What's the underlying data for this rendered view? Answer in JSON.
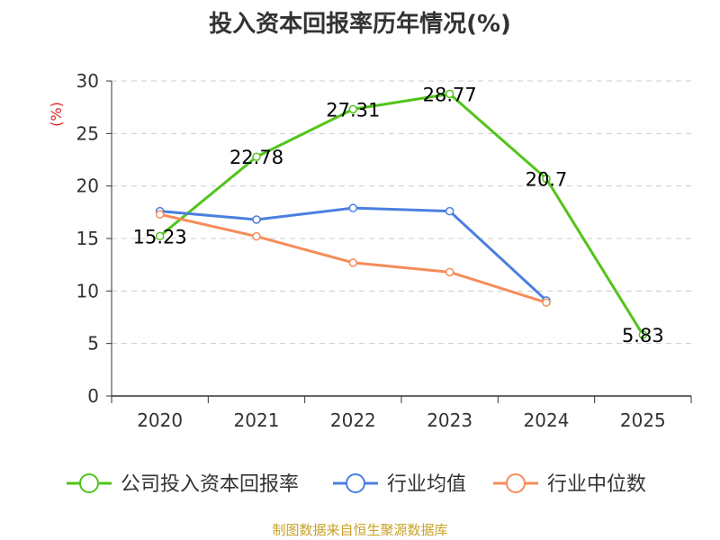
{
  "chart_data": {
    "type": "line",
    "title": "投入资本回报率历年情况(%)",
    "ylabel": "(%)",
    "xlabel": "",
    "categories": [
      "2020",
      "2021",
      "2022",
      "2023",
      "2024",
      "2025"
    ],
    "ylim": [
      0,
      30
    ],
    "yticks": [
      0,
      5,
      10,
      15,
      20,
      25,
      30
    ],
    "grid": true,
    "legend_position": "bottom",
    "series": [
      {
        "name": "公司投入资本回报率",
        "color": "#52c41a",
        "values": [
          15.23,
          22.78,
          27.31,
          28.77,
          20.7,
          5.83
        ],
        "labels": [
          "15.23",
          "22.78",
          "27.31",
          "28.77",
          "20.7",
          "5.83"
        ]
      },
      {
        "name": "行业均值",
        "color": "#4a7fe0",
        "values": [
          17.6,
          16.8,
          17.9,
          17.6,
          9.1,
          null
        ]
      },
      {
        "name": "行业中位数",
        "color": "#f68c5a",
        "values": [
          17.3,
          15.2,
          12.7,
          11.8,
          8.9,
          null
        ]
      }
    ]
  },
  "ylabel_color": "#e02020",
  "source_note": "制图数据来自恒生聚源数据库"
}
